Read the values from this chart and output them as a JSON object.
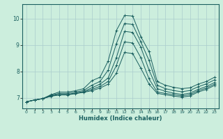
{
  "xlabel": "Humidex (Indice chaleur)",
  "bg_color": "#cceedd",
  "grid_color": "#aacccc",
  "line_color": "#1a5f5f",
  "xlim": [
    -0.5,
    23.5
  ],
  "ylim": [
    6.6,
    10.55
  ],
  "xticks": [
    0,
    1,
    2,
    3,
    4,
    5,
    6,
    7,
    8,
    9,
    10,
    11,
    12,
    13,
    14,
    15,
    16,
    17,
    18,
    19,
    20,
    21,
    22,
    23
  ],
  "yticks": [
    7,
    8,
    9,
    10
  ],
  "series": [
    [
      6.85,
      6.92,
      6.97,
      7.12,
      7.22,
      7.22,
      7.27,
      7.35,
      7.65,
      7.78,
      8.4,
      9.55,
      10.12,
      10.1,
      9.32,
      8.75,
      7.62,
      7.48,
      7.4,
      7.35,
      7.38,
      7.52,
      7.62,
      7.78
    ],
    [
      6.85,
      6.92,
      6.97,
      7.1,
      7.17,
      7.17,
      7.22,
      7.28,
      7.48,
      7.62,
      8.05,
      9.05,
      9.82,
      9.78,
      9.12,
      8.42,
      7.48,
      7.35,
      7.28,
      7.23,
      7.28,
      7.42,
      7.53,
      7.68
    ],
    [
      6.85,
      6.92,
      6.97,
      7.08,
      7.13,
      7.13,
      7.18,
      7.24,
      7.38,
      7.52,
      7.75,
      8.52,
      9.52,
      9.48,
      8.92,
      8.05,
      7.35,
      7.25,
      7.18,
      7.13,
      7.18,
      7.32,
      7.43,
      7.58
    ],
    [
      6.85,
      6.92,
      6.97,
      7.07,
      7.12,
      7.12,
      7.17,
      7.22,
      7.32,
      7.43,
      7.62,
      8.22,
      9.12,
      9.08,
      8.52,
      7.72,
      7.22,
      7.17,
      7.12,
      7.08,
      7.12,
      7.27,
      7.37,
      7.52
    ],
    [
      6.85,
      6.92,
      6.97,
      7.06,
      7.11,
      7.11,
      7.16,
      7.21,
      7.27,
      7.37,
      7.52,
      7.93,
      8.72,
      8.68,
      8.12,
      7.52,
      7.17,
      7.12,
      7.07,
      7.03,
      7.07,
      7.22,
      7.32,
      7.47
    ]
  ]
}
